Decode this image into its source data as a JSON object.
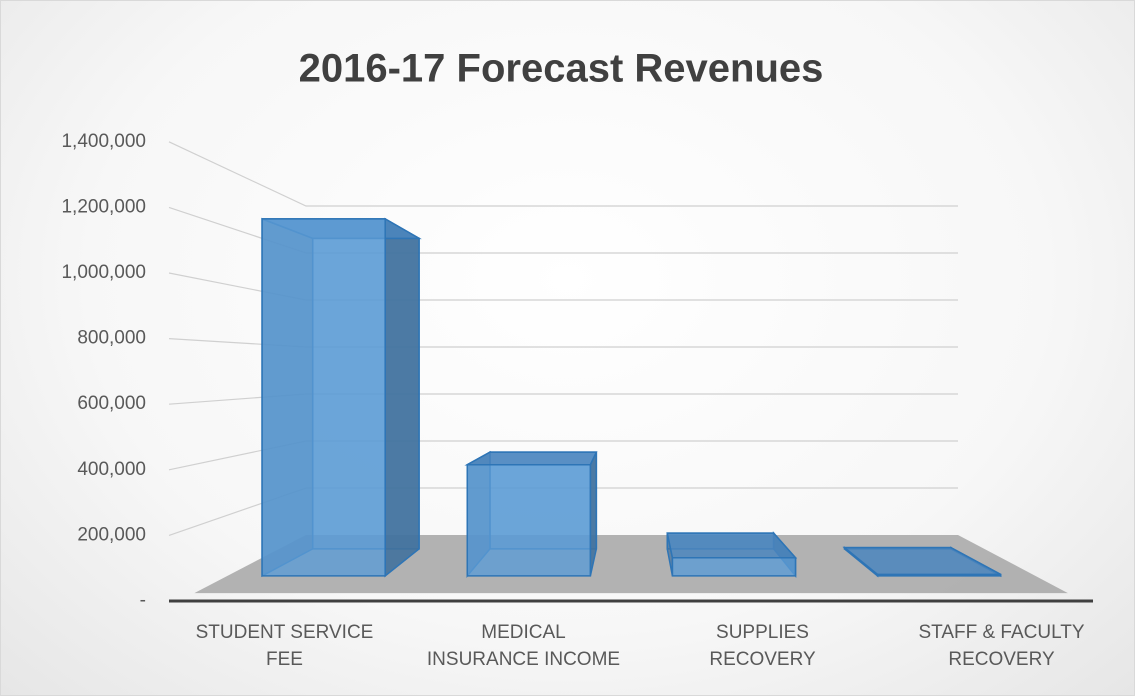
{
  "chart_data": {
    "type": "bar3d",
    "title": "2016-17 Forecast Revenues",
    "categories": [
      "STUDENT SERVICE FEE",
      "MEDICAL INSURANCE INCOME",
      "SUPPLIES RECOVERY",
      "STAFF & FACULTY RECOVERY"
    ],
    "values": [
      1220000,
      380000,
      62000,
      5000
    ],
    "color": "#5b9bd5",
    "ylim": [
      0,
      1400000
    ],
    "yticks": [
      {
        "value": 0,
        "label": "-"
      },
      {
        "value": 200000,
        "label": "200,000"
      },
      {
        "value": 400000,
        "label": "400,000"
      },
      {
        "value": 600000,
        "label": "600,000"
      },
      {
        "value": 800000,
        "label": "800,000"
      },
      {
        "value": 1000000,
        "label": "1,000,000"
      },
      {
        "value": 1200000,
        "label": "1,200,000"
      },
      {
        "value": 1400000,
        "label": "1,400,000"
      }
    ],
    "grid": true
  }
}
